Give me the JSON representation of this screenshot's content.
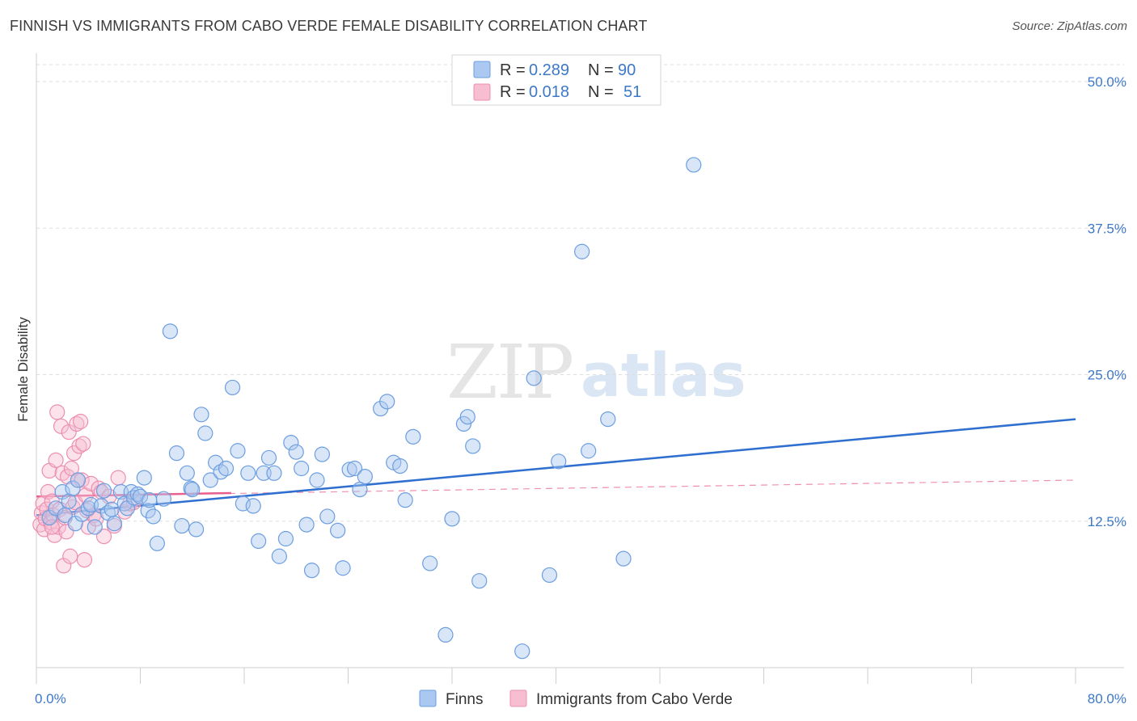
{
  "title": "FINNISH VS IMMIGRANTS FROM CABO VERDE FEMALE DISABILITY CORRELATION CHART",
  "source": "Source: ZipAtlas.com",
  "watermark": {
    "part1": "ZIP",
    "part2": "atlas"
  },
  "colors": {
    "finns_fill": "#aac8f0",
    "finns_stroke": "#6c9ee0",
    "finns_line": "#2f6fcf",
    "cabo_fill": "#f7bed2",
    "cabo_stroke": "#ec8fb0",
    "cabo_line": "#e8608e",
    "grid": "#dddddd",
    "axis_text": "#3d78c9"
  },
  "legend": {
    "finns": {
      "r_label": "R =",
      "r_value": "0.289",
      "n_label": "N =",
      "n_value": "90"
    },
    "cabo": {
      "r_label": "R =",
      "r_value": "0.018",
      "n_label": "N =",
      "n_value": "51"
    }
  },
  "chart_data": {
    "type": "scatter",
    "title": "FINNISH VS IMMIGRANTS FROM CABO VERDE FEMALE DISABILITY CORRELATION CHART",
    "ylabel": "Female Disability",
    "xlabel": "",
    "xlim": [
      0,
      80
    ],
    "ylim": [
      0,
      52
    ],
    "y_ticks": [
      {
        "value": 12.5,
        "label": "12.5%"
      },
      {
        "value": 25.0,
        "label": "25.0%"
      },
      {
        "value": 37.5,
        "label": "37.5%"
      },
      {
        "value": 50.0,
        "label": "50.0%"
      }
    ],
    "x_ticks": [
      {
        "value": 0,
        "label": "0.0%"
      },
      {
        "value": 80,
        "label": "80.0%"
      }
    ],
    "series": [
      {
        "name": "Finns",
        "r": 0.289,
        "n": 90,
        "trend": {
          "x": [
            0,
            80
          ],
          "y": [
            13.0,
            21.2
          ],
          "style": "solid"
        },
        "points": [
          [
            1.0,
            12.8
          ],
          [
            1.5,
            13.6
          ],
          [
            2.0,
            15.0
          ],
          [
            2.2,
            13.0
          ],
          [
            2.5,
            14.2
          ],
          [
            2.8,
            15.3
          ],
          [
            3.0,
            12.3
          ],
          [
            3.2,
            16.0
          ],
          [
            3.5,
            13.1
          ],
          [
            4.0,
            13.6
          ],
          [
            4.2,
            13.9
          ],
          [
            4.5,
            12.0
          ],
          [
            5.0,
            13.8
          ],
          [
            5.2,
            15.1
          ],
          [
            5.5,
            13.2
          ],
          [
            5.8,
            13.5
          ],
          [
            6.0,
            12.3
          ],
          [
            6.5,
            15.0
          ],
          [
            6.8,
            14.0
          ],
          [
            7.0,
            13.6
          ],
          [
            7.3,
            15.0
          ],
          [
            7.5,
            14.5
          ],
          [
            7.8,
            14.8
          ],
          [
            8.0,
            14.6
          ],
          [
            8.3,
            16.2
          ],
          [
            8.6,
            13.4
          ],
          [
            9.0,
            12.9
          ],
          [
            9.3,
            10.6
          ],
          [
            9.8,
            14.4
          ],
          [
            10.3,
            28.7
          ],
          [
            10.8,
            18.3
          ],
          [
            11.2,
            12.1
          ],
          [
            11.6,
            16.6
          ],
          [
            11.9,
            15.3
          ],
          [
            12.3,
            11.8
          ],
          [
            12.7,
            21.6
          ],
          [
            13.0,
            20.0
          ],
          [
            13.4,
            16.0
          ],
          [
            13.8,
            17.5
          ],
          [
            14.2,
            16.7
          ],
          [
            14.6,
            17.0
          ],
          [
            15.1,
            23.9
          ],
          [
            15.5,
            18.5
          ],
          [
            15.9,
            14.0
          ],
          [
            16.3,
            16.6
          ],
          [
            16.7,
            13.8
          ],
          [
            17.1,
            10.8
          ],
          [
            17.5,
            16.6
          ],
          [
            17.9,
            17.9
          ],
          [
            18.3,
            16.6
          ],
          [
            18.7,
            9.5
          ],
          [
            19.2,
            11.0
          ],
          [
            19.6,
            19.2
          ],
          [
            20.0,
            18.4
          ],
          [
            20.4,
            17.0
          ],
          [
            20.8,
            12.2
          ],
          [
            21.2,
            8.3
          ],
          [
            21.6,
            16.0
          ],
          [
            22.0,
            18.2
          ],
          [
            22.4,
            12.9
          ],
          [
            23.2,
            11.7
          ],
          [
            23.6,
            8.5
          ],
          [
            24.1,
            16.9
          ],
          [
            24.5,
            17.0
          ],
          [
            24.9,
            15.2
          ],
          [
            25.3,
            16.3
          ],
          [
            26.5,
            22.1
          ],
          [
            27.0,
            22.7
          ],
          [
            27.5,
            17.5
          ],
          [
            28.0,
            17.2
          ],
          [
            28.4,
            14.3
          ],
          [
            29.0,
            19.7
          ],
          [
            30.3,
            8.9
          ],
          [
            31.5,
            2.8
          ],
          [
            32.0,
            12.7
          ],
          [
            32.9,
            20.8
          ],
          [
            33.2,
            21.4
          ],
          [
            33.6,
            18.9
          ],
          [
            34.1,
            7.4
          ],
          [
            37.4,
            1.4
          ],
          [
            38.3,
            24.7
          ],
          [
            39.5,
            7.9
          ],
          [
            40.2,
            17.6
          ],
          [
            42.0,
            35.5
          ],
          [
            42.5,
            18.5
          ],
          [
            44.0,
            21.2
          ],
          [
            45.2,
            9.3
          ],
          [
            50.6,
            42.9
          ],
          [
            8.7,
            14.3
          ],
          [
            12.0,
            15.2
          ]
        ]
      },
      {
        "name": "Immigrants from Cabo Verde",
        "r": 0.018,
        "n": 51,
        "trend": {
          "x": [
            0,
            15
          ],
          "y": [
            14.6,
            14.9
          ],
          "style": "solid"
        },
        "trend_extended": {
          "x": [
            0,
            80
          ],
          "y": [
            14.6,
            16.0
          ],
          "style": "dashed"
        },
        "points": [
          [
            0.3,
            12.2
          ],
          [
            0.4,
            13.2
          ],
          [
            0.5,
            14.0
          ],
          [
            0.6,
            11.8
          ],
          [
            0.7,
            12.7
          ],
          [
            0.8,
            13.5
          ],
          [
            0.9,
            15.0
          ],
          [
            1.0,
            16.8
          ],
          [
            1.1,
            12.4
          ],
          [
            1.2,
            14.2
          ],
          [
            1.3,
            13.0
          ],
          [
            1.4,
            11.3
          ],
          [
            1.5,
            17.7
          ],
          [
            1.6,
            21.8
          ],
          [
            1.7,
            12.0
          ],
          [
            1.8,
            13.5
          ],
          [
            1.9,
            20.6
          ],
          [
            2.0,
            16.6
          ],
          [
            2.1,
            8.7
          ],
          [
            2.2,
            12.8
          ],
          [
            2.3,
            11.6
          ],
          [
            2.4,
            16.3
          ],
          [
            2.5,
            20.1
          ],
          [
            2.6,
            9.5
          ],
          [
            2.7,
            17.0
          ],
          [
            2.8,
            13.7
          ],
          [
            2.9,
            18.3
          ],
          [
            3.0,
            14.1
          ],
          [
            3.1,
            20.8
          ],
          [
            3.2,
            16.0
          ],
          [
            3.3,
            18.9
          ],
          [
            3.4,
            21.0
          ],
          [
            3.5,
            16.0
          ],
          [
            3.6,
            19.1
          ],
          [
            3.7,
            9.2
          ],
          [
            3.8,
            14.7
          ],
          [
            3.9,
            13.4
          ],
          [
            4.0,
            12.0
          ],
          [
            4.2,
            15.7
          ],
          [
            4.4,
            13.0
          ],
          [
            4.6,
            12.7
          ],
          [
            4.8,
            15.3
          ],
          [
            5.0,
            15.0
          ],
          [
            5.2,
            11.2
          ],
          [
            5.6,
            14.6
          ],
          [
            6.0,
            12.1
          ],
          [
            6.3,
            16.2
          ],
          [
            6.8,
            13.3
          ],
          [
            7.2,
            14.0
          ],
          [
            7.5,
            14.1
          ],
          [
            1.2,
            12.0
          ]
        ]
      }
    ]
  }
}
